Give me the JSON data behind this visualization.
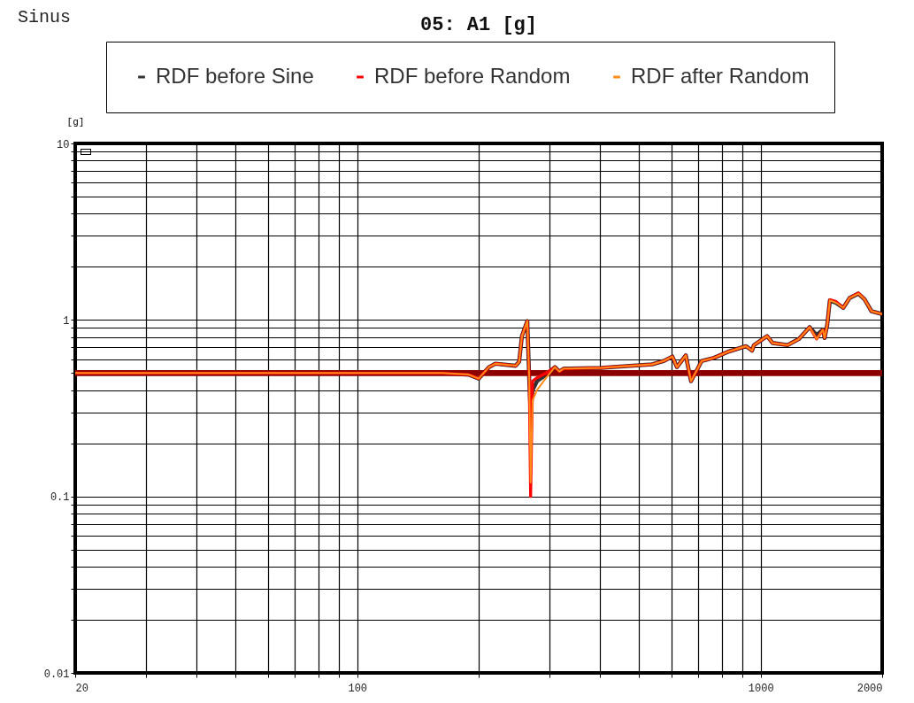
{
  "chart_data": {
    "type": "line",
    "title": "05: A1 [g]",
    "subtitle": "Sinus",
    "ylabel": "[g]",
    "x": [
      20,
      35.8,
      59.2,
      98,
      162.6,
      189,
      200,
      212,
      220,
      247,
      252,
      256,
      264,
      267,
      269,
      272,
      279,
      294,
      309,
      317,
      325,
      335,
      403,
      424,
      538,
      575,
      604,
      620,
      652,
      672,
      714,
      766,
      830,
      919,
      952,
      962,
      1037,
      1070,
      1166,
      1244,
      1322,
      1376,
      1426,
      1440,
      1462,
      1484,
      1538,
      1602,
      1660,
      1746,
      1808,
      1882,
      2000
    ],
    "series": [
      {
        "name": "RDF before Sine",
        "color": "#333333",
        "values": [
          0.5,
          0.5,
          0.5,
          0.5,
          0.5,
          0.49,
          0.465,
          0.54,
          0.565,
          0.55,
          0.58,
          0.81,
          0.985,
          0.45,
          0.3,
          0.4,
          0.45,
          0.49,
          0.54,
          0.51,
          0.53,
          0.53,
          0.535,
          0.54,
          0.56,
          0.585,
          0.62,
          0.54,
          0.63,
          0.45,
          0.585,
          0.61,
          0.66,
          0.71,
          0.67,
          0.72,
          0.81,
          0.74,
          0.72,
          0.78,
          0.91,
          0.82,
          0.88,
          0.79,
          0.94,
          1.29,
          1.25,
          1.17,
          1.33,
          1.41,
          1.31,
          1.12,
          1.08
        ]
      },
      {
        "name": "RDF before Random",
        "color": "#ff0000",
        "values": [
          0.5,
          0.5,
          0.5,
          0.5,
          0.5,
          0.49,
          0.465,
          0.54,
          0.565,
          0.55,
          0.58,
          0.81,
          0.985,
          0.45,
          0.1,
          0.45,
          0.47,
          0.5,
          0.54,
          0.51,
          0.53,
          0.53,
          0.535,
          0.54,
          0.56,
          0.585,
          0.62,
          0.54,
          0.63,
          0.45,
          0.585,
          0.61,
          0.66,
          0.71,
          0.67,
          0.72,
          0.81,
          0.74,
          0.72,
          0.78,
          0.91,
          0.78,
          0.88,
          0.79,
          0.94,
          1.3,
          1.27,
          1.17,
          1.33,
          1.42,
          1.31,
          1.12,
          1.08
        ]
      },
      {
        "name": "RDF after Random",
        "color": "#ff8c1a",
        "values": [
          0.5,
          0.5,
          0.5,
          0.5,
          0.5,
          0.49,
          0.465,
          0.54,
          0.565,
          0.55,
          0.58,
          0.81,
          0.985,
          0.45,
          0.12,
          0.35,
          0.4,
          0.47,
          0.54,
          0.51,
          0.53,
          0.53,
          0.535,
          0.54,
          0.56,
          0.585,
          0.62,
          0.54,
          0.63,
          0.45,
          0.585,
          0.61,
          0.66,
          0.71,
          0.67,
          0.72,
          0.81,
          0.74,
          0.72,
          0.78,
          0.91,
          0.78,
          0.88,
          0.79,
          0.94,
          1.29,
          1.25,
          1.17,
          1.33,
          1.41,
          1.31,
          1.12,
          1.08
        ]
      }
    ],
    "xlim": [
      20,
      2000
    ],
    "ylim": [
      0.01,
      10
    ],
    "xticks": [
      20,
      {
        "value": 30,
        "label": null
      },
      {
        "value": 40,
        "label": null
      },
      {
        "value": 50,
        "label": null
      },
      {
        "value": 60,
        "label": null
      },
      {
        "value": 70,
        "label": null
      },
      {
        "value": 80,
        "label": null
      },
      {
        "value": 90,
        "label": null
      },
      100,
      {
        "value": 200,
        "label": null
      },
      {
        "value": 300,
        "label": null
      },
      {
        "value": 400,
        "label": null
      },
      {
        "value": 500,
        "label": null
      },
      {
        "value": 600,
        "label": null
      },
      {
        "value": 700,
        "label": null
      },
      {
        "value": 800,
        "label": null
      },
      {
        "value": 900,
        "label": null
      },
      1000,
      2000
    ],
    "yticks": [
      0.01,
      {
        "value": 0.02,
        "label": null
      },
      {
        "value": 0.03,
        "label": null
      },
      {
        "value": 0.04,
        "label": null
      },
      {
        "value": 0.05,
        "label": null
      },
      {
        "value": 0.06,
        "label": null
      },
      {
        "value": 0.07,
        "label": null
      },
      {
        "value": 0.08,
        "label": null
      },
      {
        "value": 0.09,
        "label": null
      },
      0.1,
      {
        "value": 0.2,
        "label": null
      },
      {
        "value": 0.3,
        "label": null
      },
      {
        "value": 0.4,
        "label": null
      },
      {
        "value": 0.5,
        "label": null
      },
      {
        "value": 0.6,
        "label": null
      },
      {
        "value": 0.7,
        "label": null
      },
      {
        "value": 0.8,
        "label": null
      },
      {
        "value": 0.9,
        "label": null
      },
      1,
      {
        "value": 2,
        "label": null
      },
      {
        "value": 3,
        "label": null
      },
      {
        "value": 4,
        "label": null
      },
      {
        "value": 5,
        "label": null
      },
      {
        "value": 6,
        "label": null
      },
      {
        "value": 7,
        "label": null
      },
      {
        "value": 8,
        "label": null
      },
      {
        "value": 9,
        "label": null
      },
      10
    ],
    "log": "xy",
    "grid": true,
    "legend": "top",
    "ref_lines": [
      {
        "axis": "y",
        "value": 0.5,
        "color": "#8b0000"
      }
    ]
  }
}
